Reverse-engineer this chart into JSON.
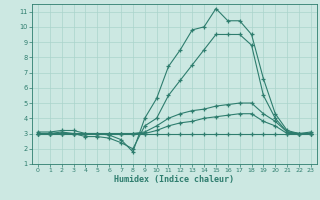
{
  "xlabel": "Humidex (Indice chaleur)",
  "hours": [
    0,
    1,
    2,
    3,
    4,
    5,
    6,
    7,
    8,
    9,
    10,
    11,
    12,
    13,
    14,
    15,
    16,
    17,
    18,
    19,
    20,
    21,
    22,
    23
  ],
  "line_max": [
    3.1,
    3.1,
    3.2,
    3.2,
    3.0,
    3.0,
    2.9,
    2.6,
    1.8,
    4.0,
    5.3,
    7.4,
    8.5,
    9.8,
    10.0,
    11.2,
    10.4,
    10.4,
    9.5,
    6.6,
    4.3,
    3.2,
    3.0,
    3.1
  ],
  "line_upper": [
    3.0,
    3.0,
    3.1,
    3.0,
    2.8,
    2.8,
    2.7,
    2.4,
    2.0,
    3.5,
    4.0,
    5.5,
    6.5,
    7.5,
    8.5,
    9.5,
    9.5,
    9.5,
    8.8,
    5.5,
    4.0,
    3.1,
    3.0,
    3.0
  ],
  "line_mean": [
    3.0,
    3.0,
    3.0,
    3.0,
    3.0,
    3.0,
    3.0,
    3.0,
    3.0,
    3.1,
    3.5,
    4.0,
    4.3,
    4.5,
    4.6,
    4.8,
    4.9,
    5.0,
    5.0,
    4.3,
    3.8,
    3.1,
    3.0,
    3.0
  ],
  "line_lower": [
    3.0,
    3.0,
    3.0,
    3.0,
    3.0,
    3.0,
    3.0,
    3.0,
    3.0,
    3.0,
    3.2,
    3.5,
    3.7,
    3.8,
    4.0,
    4.1,
    4.2,
    4.3,
    4.3,
    3.8,
    3.5,
    3.0,
    3.0,
    3.0
  ],
  "line_min": [
    3.0,
    3.0,
    3.0,
    3.0,
    3.0,
    3.0,
    3.0,
    3.0,
    3.0,
    3.0,
    3.0,
    3.0,
    3.0,
    3.0,
    3.0,
    3.0,
    3.0,
    3.0,
    3.0,
    3.0,
    3.0,
    3.0,
    3.0,
    3.0
  ],
  "line_color": "#2e7d6e",
  "bg_color": "#cce8e2",
  "grid_color": "#aad4cc",
  "xlim": [
    -0.5,
    23.5
  ],
  "ylim": [
    1,
    11.5
  ],
  "yticks": [
    1,
    2,
    3,
    4,
    5,
    6,
    7,
    8,
    9,
    10,
    11
  ],
  "xticks": [
    0,
    1,
    2,
    3,
    4,
    5,
    6,
    7,
    8,
    9,
    10,
    11,
    12,
    13,
    14,
    15,
    16,
    17,
    18,
    19,
    20,
    21,
    22,
    23
  ]
}
